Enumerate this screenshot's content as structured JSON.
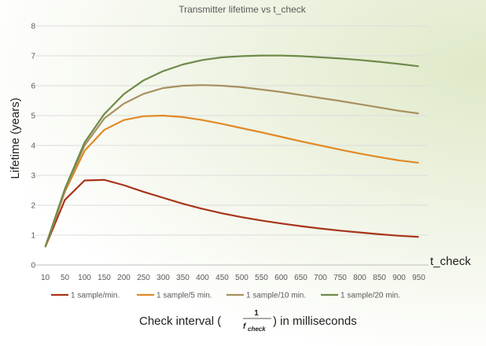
{
  "chart_data": {
    "type": "line",
    "title": "Transmitter lifetime vs t_check",
    "ylabel": "Lifetime (years)",
    "xlabel_pre": "Check interval (",
    "xlabel_frac_num": "1",
    "xlabel_frac_den": "f",
    "xlabel_frac_den_sub": "check",
    "xlabel_post": ") in milliseconds",
    "x_axis_annotation": "t_check",
    "ylim": [
      0,
      8
    ],
    "yticks": [
      "0",
      "1",
      "2",
      "3",
      "4",
      "5",
      "6",
      "7",
      "8"
    ],
    "x": [
      "10",
      "50",
      "100",
      "150",
      "200",
      "250",
      "300",
      "350",
      "400",
      "450",
      "500",
      "550",
      "600",
      "650",
      "700",
      "750",
      "800",
      "850",
      "900",
      "950"
    ],
    "grid": true,
    "legend_position": "bottom",
    "series": [
      {
        "name": "1 sample/min.",
        "color": "#a8341a",
        "values": [
          0.6,
          2.18,
          2.83,
          2.85,
          2.67,
          2.45,
          2.25,
          2.05,
          1.88,
          1.73,
          1.6,
          1.49,
          1.39,
          1.3,
          1.22,
          1.15,
          1.09,
          1.03,
          0.98,
          0.94
        ]
      },
      {
        "name": "1 sample/5 min.",
        "color": "#e08a26",
        "values": [
          0.6,
          2.45,
          3.82,
          4.52,
          4.85,
          4.98,
          5.0,
          4.95,
          4.85,
          4.72,
          4.58,
          4.44,
          4.29,
          4.14,
          4.0,
          3.86,
          3.73,
          3.61,
          3.5,
          3.42
        ]
      },
      {
        "name": "1 sample/10 min.",
        "color": "#a89060",
        "values": [
          0.6,
          2.5,
          4.0,
          4.9,
          5.4,
          5.73,
          5.92,
          6.0,
          6.02,
          6.0,
          5.95,
          5.87,
          5.79,
          5.69,
          5.59,
          5.49,
          5.38,
          5.27,
          5.16,
          5.07
        ]
      },
      {
        "name": "1 sample/20 min.",
        "color": "#6f8a4a",
        "values": [
          0.6,
          2.55,
          4.1,
          5.05,
          5.72,
          6.18,
          6.49,
          6.71,
          6.86,
          6.95,
          6.99,
          7.01,
          7.01,
          6.99,
          6.95,
          6.91,
          6.86,
          6.8,
          6.73,
          6.65
        ]
      }
    ]
  }
}
